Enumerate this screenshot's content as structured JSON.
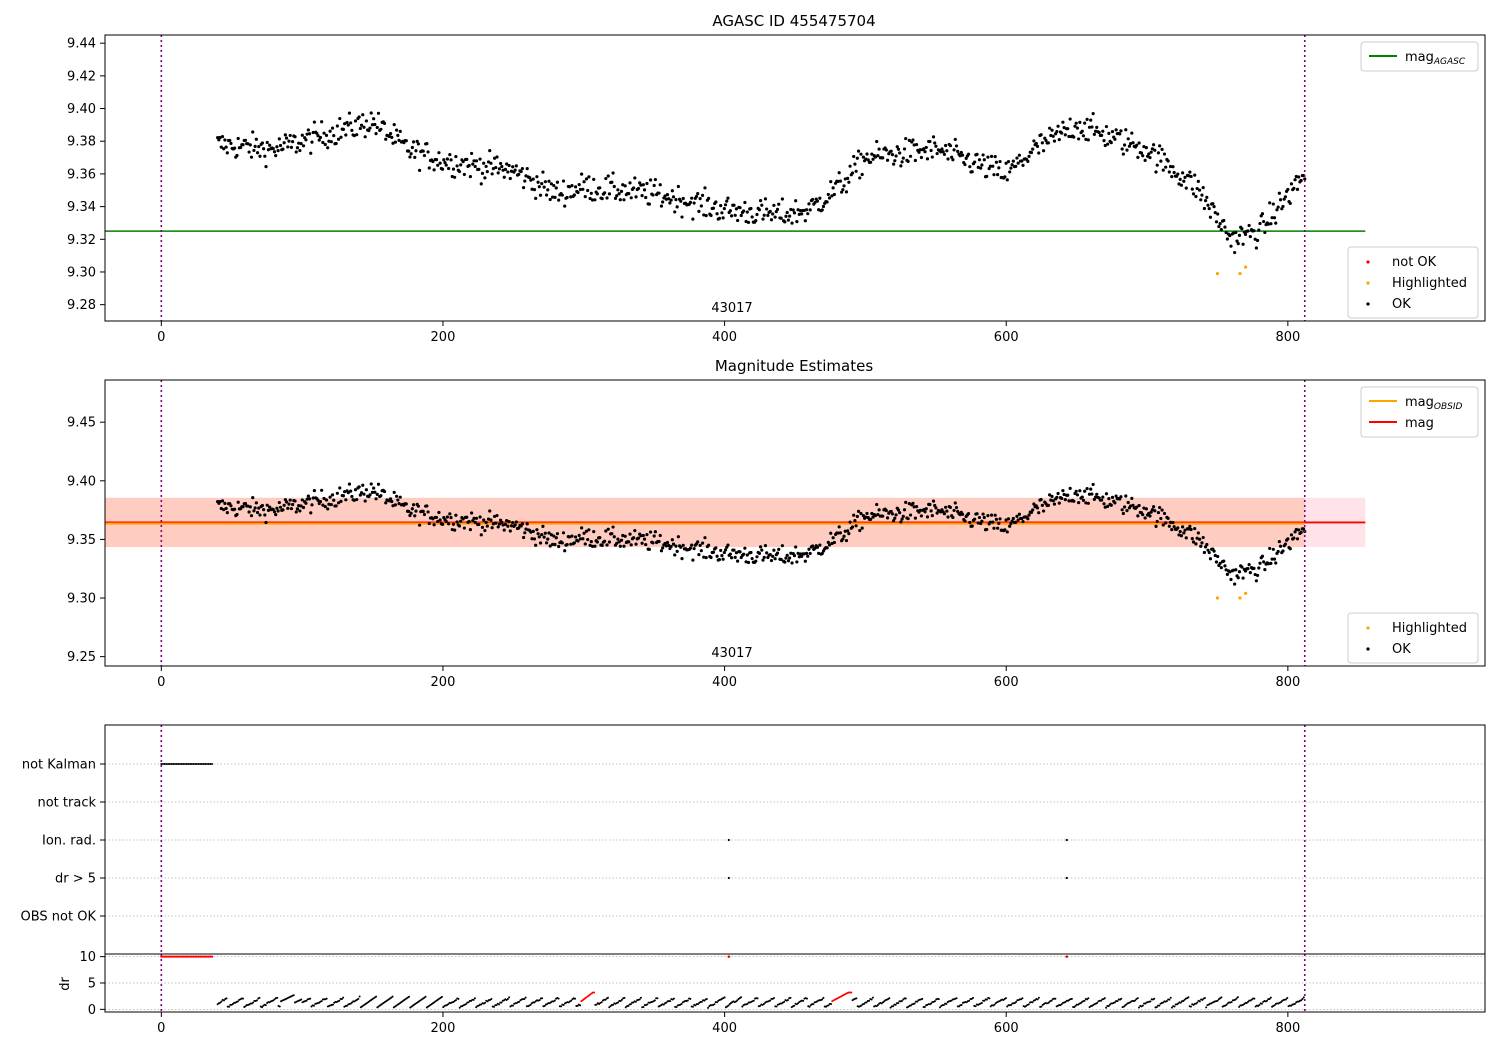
{
  "chart_data": [
    {
      "type": "scatter",
      "title": "AGASC ID 455475704",
      "xlim": [
        -40,
        940
      ],
      "ylim": [
        9.27,
        9.445
      ],
      "xticks": [
        0,
        200,
        400,
        600,
        800
      ],
      "yticks": [
        9.28,
        9.3,
        9.32,
        9.34,
        9.36,
        9.38,
        9.4,
        9.42,
        9.44
      ],
      "ytick_labels": [
        "9.28",
        "9.30",
        "9.32",
        "9.34",
        "9.36",
        "9.38",
        "9.40",
        "9.42",
        "9.44"
      ],
      "grid": false,
      "vlines": [
        0,
        812
      ],
      "obsid_label": "43017",
      "legend_top": {
        "position": "top-right",
        "entries": [
          {
            "label": "mag",
            "sub": "AGASC",
            "color": "#008000",
            "marker": "line"
          }
        ]
      },
      "legend_bottom": {
        "position": "bottom-right",
        "entries": [
          {
            "label": "not OK",
            "color": "#ff0000",
            "marker": "dot"
          },
          {
            "label": "Highlighted",
            "color": "#ffa500",
            "marker": "dot"
          },
          {
            "label": "OK",
            "color": "#000000",
            "marker": "dot"
          }
        ]
      },
      "hline": {
        "y": 9.325,
        "x_end": 855,
        "color": "#008000",
        "label": "mag_AGASC"
      },
      "series": [
        {
          "name": "OK",
          "color": "#000000",
          "x_range": [
            40,
            812
          ],
          "count": 900,
          "trend": [
            [
              40,
              9.378
            ],
            [
              80,
              9.375
            ],
            [
              120,
              9.385
            ],
            [
              150,
              9.392
            ],
            [
              175,
              9.375
            ],
            [
              200,
              9.368
            ],
            [
              250,
              9.362
            ],
            [
              280,
              9.348
            ],
            [
              300,
              9.352
            ],
            [
              350,
              9.348
            ],
            [
              400,
              9.338
            ],
            [
              440,
              9.335
            ],
            [
              460,
              9.338
            ],
            [
              485,
              9.355
            ],
            [
              500,
              9.37
            ],
            [
              550,
              9.375
            ],
            [
              600,
              9.36
            ],
            [
              620,
              9.375
            ],
            [
              650,
              9.39
            ],
            [
              700,
              9.375
            ],
            [
              735,
              9.352
            ],
            [
              760,
              9.32
            ],
            [
              780,
              9.325
            ],
            [
              812,
              9.36
            ]
          ],
          "noise": 0.011
        },
        {
          "name": "Highlighted",
          "color": "#ffa500",
          "points": [
            [
              750,
              9.299
            ],
            [
              766,
              9.299
            ],
            [
              770,
              9.303
            ]
          ]
        }
      ]
    },
    {
      "type": "scatter",
      "title": "Magnitude Estimates",
      "xlim": [
        -40,
        940
      ],
      "ylim": [
        9.242,
        9.486
      ],
      "xticks": [
        0,
        200,
        400,
        600,
        800
      ],
      "yticks": [
        9.25,
        9.3,
        9.35,
        9.4,
        9.45
      ],
      "ytick_labels": [
        "9.25",
        "9.30",
        "9.35",
        "9.40",
        "9.45"
      ],
      "grid": false,
      "vlines": [
        0,
        812
      ],
      "obsid_label": "43017",
      "legend_top": {
        "position": "top-right",
        "entries": [
          {
            "label": "mag",
            "sub": "OBSID",
            "color": "#ffa500",
            "marker": "line"
          },
          {
            "label": "mag",
            "color": "#ff0000",
            "marker": "line"
          }
        ]
      },
      "legend_bottom": {
        "position": "bottom-right",
        "entries": [
          {
            "label": "Highlighted",
            "color": "#ffa500",
            "marker": "dot"
          },
          {
            "label": "OK",
            "color": "#000000",
            "marker": "dot"
          }
        ]
      },
      "mag_line": {
        "y": 9.3645,
        "x_end": 855,
        "color": "#ff0000"
      },
      "mag_band": {
        "y0": 9.3435,
        "y1": 9.3855,
        "x_end": 855,
        "color": "#ffc0cb"
      },
      "obsid_line": {
        "y": 9.3635,
        "x_start": 40,
        "x_end": 812,
        "color": "#ffa500"
      },
      "obsid_band": {
        "y0": 9.3435,
        "y1": 9.3855,
        "x_start": 40,
        "x_end": 812,
        "color": "#ffa07a"
      },
      "series": [
        {
          "name": "OK",
          "color": "#000000",
          "same_as_panel": 0
        },
        {
          "name": "Highlighted",
          "color": "#ffa500",
          "points": [
            [
              750,
              9.3
            ],
            [
              766,
              9.3
            ],
            [
              770,
              9.304
            ]
          ]
        }
      ]
    },
    {
      "type": "scatter",
      "title": "",
      "xlim": [
        -40,
        940
      ],
      "xticks": [
        0,
        200,
        400,
        600,
        800
      ],
      "vlines": [
        0,
        812
      ],
      "flag_rows": [
        {
          "label": "not Kalman",
          "points_x_range": [
            0,
            37
          ]
        },
        {
          "label": "not track",
          "points": []
        },
        {
          "label": "Ion. rad.",
          "points": [
            403,
            643
          ]
        },
        {
          "label": "dr > 5",
          "points": [
            403,
            643
          ]
        },
        {
          "label": "OBS not OK",
          "points": []
        }
      ],
      "dr": {
        "ylabel": "dr",
        "ylim": [
          -0.5,
          10.5
        ],
        "yticks": [
          0,
          5,
          10
        ],
        "ytick_labels": [
          "0",
          "5",
          "10"
        ],
        "clipped_at": 10,
        "clipped_points": {
          "color": "#ff0000",
          "x_range": [
            0,
            37
          ],
          "extra_x": [
            403,
            643
          ]
        },
        "trend_color": "#000000",
        "red_segments": [
          [
            298,
            308
          ],
          [
            476,
            490
          ]
        ]
      }
    }
  ]
}
